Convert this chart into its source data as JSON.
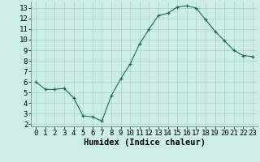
{
  "x": [
    0,
    1,
    2,
    3,
    4,
    5,
    6,
    7,
    8,
    9,
    10,
    11,
    12,
    13,
    14,
    15,
    16,
    17,
    18,
    19,
    20,
    21,
    22,
    23
  ],
  "y": [
    6.0,
    5.3,
    5.3,
    5.4,
    4.5,
    2.8,
    2.7,
    2.3,
    4.7,
    6.3,
    7.7,
    9.6,
    11.0,
    12.3,
    12.5,
    13.1,
    13.2,
    13.0,
    11.9,
    10.8,
    9.9,
    9.0,
    8.5,
    8.4
  ],
  "xlabel": "Humidex (Indice chaleur)",
  "ylim": [
    1.8,
    13.6
  ],
  "xlim": [
    -0.5,
    23.5
  ],
  "yticks": [
    2,
    3,
    4,
    5,
    6,
    7,
    8,
    9,
    10,
    11,
    12,
    13
  ],
  "xticks": [
    0,
    1,
    2,
    3,
    4,
    5,
    6,
    7,
    8,
    9,
    10,
    11,
    12,
    13,
    14,
    15,
    16,
    17,
    18,
    19,
    20,
    21,
    22,
    23
  ],
  "line_color": "#1a6b5a",
  "marker_color": "#1a6b5a",
  "bg_color": "#cceee8",
  "grid_color": "#aad4cc",
  "xlabel_fontsize": 7.5,
  "tick_fontsize": 6.5
}
